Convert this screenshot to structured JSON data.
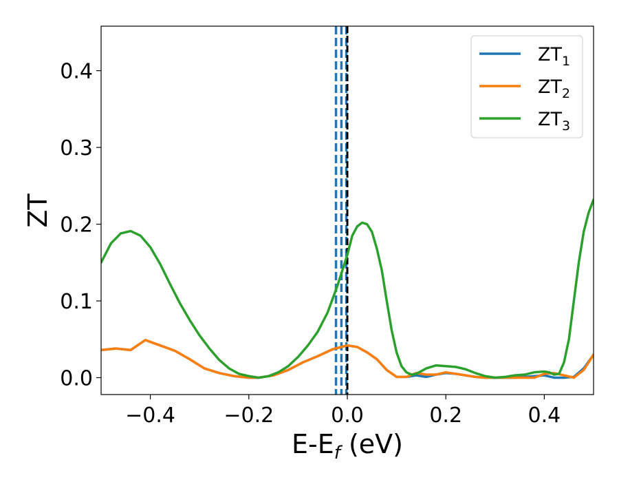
{
  "chart_data": {
    "type": "line",
    "xlabel": "E-E",
    "xlabel_sub": "f",
    "xlabel_unit": " (eV)",
    "ylabel": "ZT",
    "xlim": [
      -0.5,
      0.5
    ],
    "ylim": [
      -0.022,
      0.458
    ],
    "xticks": [
      -0.4,
      -0.2,
      0.0,
      0.2,
      0.4
    ],
    "xtick_labels": [
      "−0.4",
      "−0.2",
      "0.0",
      "0.2",
      "0.4"
    ],
    "yticks": [
      0.0,
      0.1,
      0.2,
      0.3,
      0.4
    ],
    "ytick_labels": [
      "0.0",
      "0.1",
      "0.2",
      "0.3",
      "0.4"
    ],
    "grid": false,
    "legend_position": "top-right",
    "series": [
      {
        "name": "ZT",
        "name_sub": "1",
        "color": "#1f77b4",
        "x": [
          -0.5,
          -0.47,
          -0.44,
          -0.41,
          -0.38,
          -0.35,
          -0.32,
          -0.29,
          -0.26,
          -0.23,
          -0.2,
          -0.18,
          -0.15,
          -0.12,
          -0.09,
          -0.06,
          -0.03,
          0.0,
          0.02,
          0.04,
          0.06,
          0.08,
          0.1,
          0.12,
          0.14,
          0.16,
          0.18,
          0.2,
          0.22,
          0.24,
          0.26,
          0.28,
          0.3,
          0.32,
          0.34,
          0.36,
          0.38,
          0.4,
          0.42,
          0.44,
          0.46,
          0.48,
          0.5
        ],
        "y": [
          0.036,
          0.038,
          0.036,
          0.049,
          0.042,
          0.035,
          0.024,
          0.012,
          0.006,
          0.002,
          0.0,
          0.0,
          0.003,
          0.01,
          0.02,
          0.028,
          0.037,
          0.042,
          0.04,
          0.033,
          0.024,
          0.01,
          0.001,
          0.001,
          0.003,
          0.001,
          0.004,
          0.006,
          0.005,
          0.003,
          0.001,
          0.0,
          0.0,
          0.0,
          0.0,
          0.001,
          0.002,
          0.003,
          0.0,
          0.0,
          0.001,
          0.012,
          0.03
        ]
      },
      {
        "name": "ZT",
        "name_sub": "2",
        "color": "#ff7f0e",
        "x": [
          -0.5,
          -0.47,
          -0.44,
          -0.41,
          -0.38,
          -0.35,
          -0.32,
          -0.29,
          -0.26,
          -0.23,
          -0.2,
          -0.18,
          -0.15,
          -0.12,
          -0.09,
          -0.06,
          -0.03,
          0.0,
          0.02,
          0.04,
          0.06,
          0.08,
          0.1,
          0.12,
          0.14,
          0.16,
          0.18,
          0.2,
          0.22,
          0.24,
          0.26,
          0.28,
          0.3,
          0.32,
          0.34,
          0.36,
          0.38,
          0.4,
          0.42,
          0.44,
          0.46,
          0.48,
          0.5
        ],
        "y": [
          0.036,
          0.038,
          0.036,
          0.049,
          0.042,
          0.035,
          0.024,
          0.012,
          0.006,
          0.002,
          0.0,
          0.0,
          0.003,
          0.01,
          0.02,
          0.028,
          0.037,
          0.042,
          0.04,
          0.033,
          0.024,
          0.01,
          0.001,
          0.001,
          0.006,
          0.004,
          0.004,
          0.007,
          0.005,
          0.003,
          0.001,
          0.0,
          0.0,
          0.0,
          0.0,
          0.0,
          0.0,
          0.005,
          0.006,
          0.003,
          0.0,
          0.01,
          0.03
        ]
      },
      {
        "name": "ZT",
        "name_sub": "3",
        "color": "#2ca02c",
        "x": [
          -0.5,
          -0.48,
          -0.46,
          -0.44,
          -0.42,
          -0.4,
          -0.38,
          -0.36,
          -0.34,
          -0.32,
          -0.3,
          -0.28,
          -0.26,
          -0.24,
          -0.22,
          -0.2,
          -0.18,
          -0.16,
          -0.14,
          -0.12,
          -0.1,
          -0.08,
          -0.06,
          -0.04,
          -0.02,
          0.0,
          0.01,
          0.02,
          0.03,
          0.04,
          0.05,
          0.06,
          0.07,
          0.08,
          0.09,
          0.1,
          0.11,
          0.12,
          0.13,
          0.14,
          0.16,
          0.18,
          0.2,
          0.22,
          0.24,
          0.26,
          0.28,
          0.3,
          0.32,
          0.34,
          0.36,
          0.38,
          0.4,
          0.41,
          0.42,
          0.43,
          0.44,
          0.45,
          0.46,
          0.47,
          0.48,
          0.49,
          0.5
        ],
        "y": [
          0.15,
          0.175,
          0.188,
          0.191,
          0.185,
          0.17,
          0.148,
          0.122,
          0.097,
          0.075,
          0.055,
          0.038,
          0.023,
          0.012,
          0.005,
          0.002,
          0.0,
          0.002,
          0.007,
          0.015,
          0.027,
          0.042,
          0.06,
          0.085,
          0.12,
          0.16,
          0.185,
          0.197,
          0.202,
          0.2,
          0.19,
          0.168,
          0.14,
          0.1,
          0.062,
          0.033,
          0.015,
          0.007,
          0.004,
          0.005,
          0.012,
          0.016,
          0.015,
          0.014,
          0.011,
          0.006,
          0.002,
          0.0,
          0.001,
          0.003,
          0.004,
          0.007,
          0.008,
          0.007,
          0.004,
          0.005,
          0.02,
          0.05,
          0.1,
          0.15,
          0.19,
          0.215,
          0.232
        ]
      }
    ],
    "vertical_lines": [
      {
        "x": -0.023,
        "style": "dashed",
        "color": "#1f77b4"
      },
      {
        "x": -0.012,
        "style": "dashed",
        "color": "#1f77b4"
      },
      {
        "x": -0.002,
        "style": "dashed",
        "color": "#1f77b4"
      },
      {
        "x": 0.0,
        "style": "dashed",
        "color": "#000000"
      }
    ]
  }
}
